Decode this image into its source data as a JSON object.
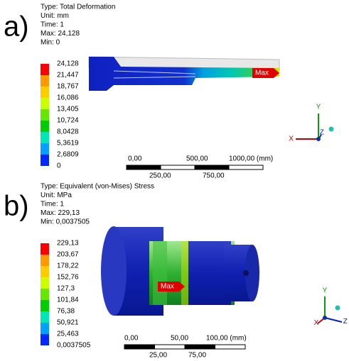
{
  "panels": [
    {
      "label": "a)",
      "info": [
        "Type: Total Deformation",
        "Unit: mm",
        "Time: 1",
        "Max: 24,128",
        "Min: 0"
      ],
      "legend": [
        "24,128",
        "21,447",
        "18,767",
        "16,086",
        "13,405",
        "10,724",
        "8,0428",
        "5,3619",
        "2,6809",
        "0"
      ],
      "max_tag": "Max",
      "scale": {
        "top": [
          "0,00",
          "500,00",
          "1000,00 (mm)"
        ],
        "bottom": [
          "250,00",
          "750,00"
        ]
      },
      "axes": [
        "Y",
        "X",
        "Z"
      ]
    },
    {
      "label": "b)",
      "info": [
        "Type: Equivalent (von-Mises) Stress",
        "Unit: MPa",
        "Time: 1",
        "Max: 229,13",
        "Min: 0,0037505"
      ],
      "legend": [
        "229,13",
        "203,67",
        "178,22",
        "152,76",
        "127,3",
        "101,84",
        "76,38",
        "50,921",
        "25,463",
        "0,0037505"
      ],
      "max_tag": "Max",
      "scale": {
        "top": [
          "0,00",
          "50,00",
          "100,00 (mm)"
        ],
        "bottom": [
          "25,00",
          "75,00"
        ]
      },
      "axes": [
        "Y",
        "X",
        "Z"
      ]
    }
  ]
}
